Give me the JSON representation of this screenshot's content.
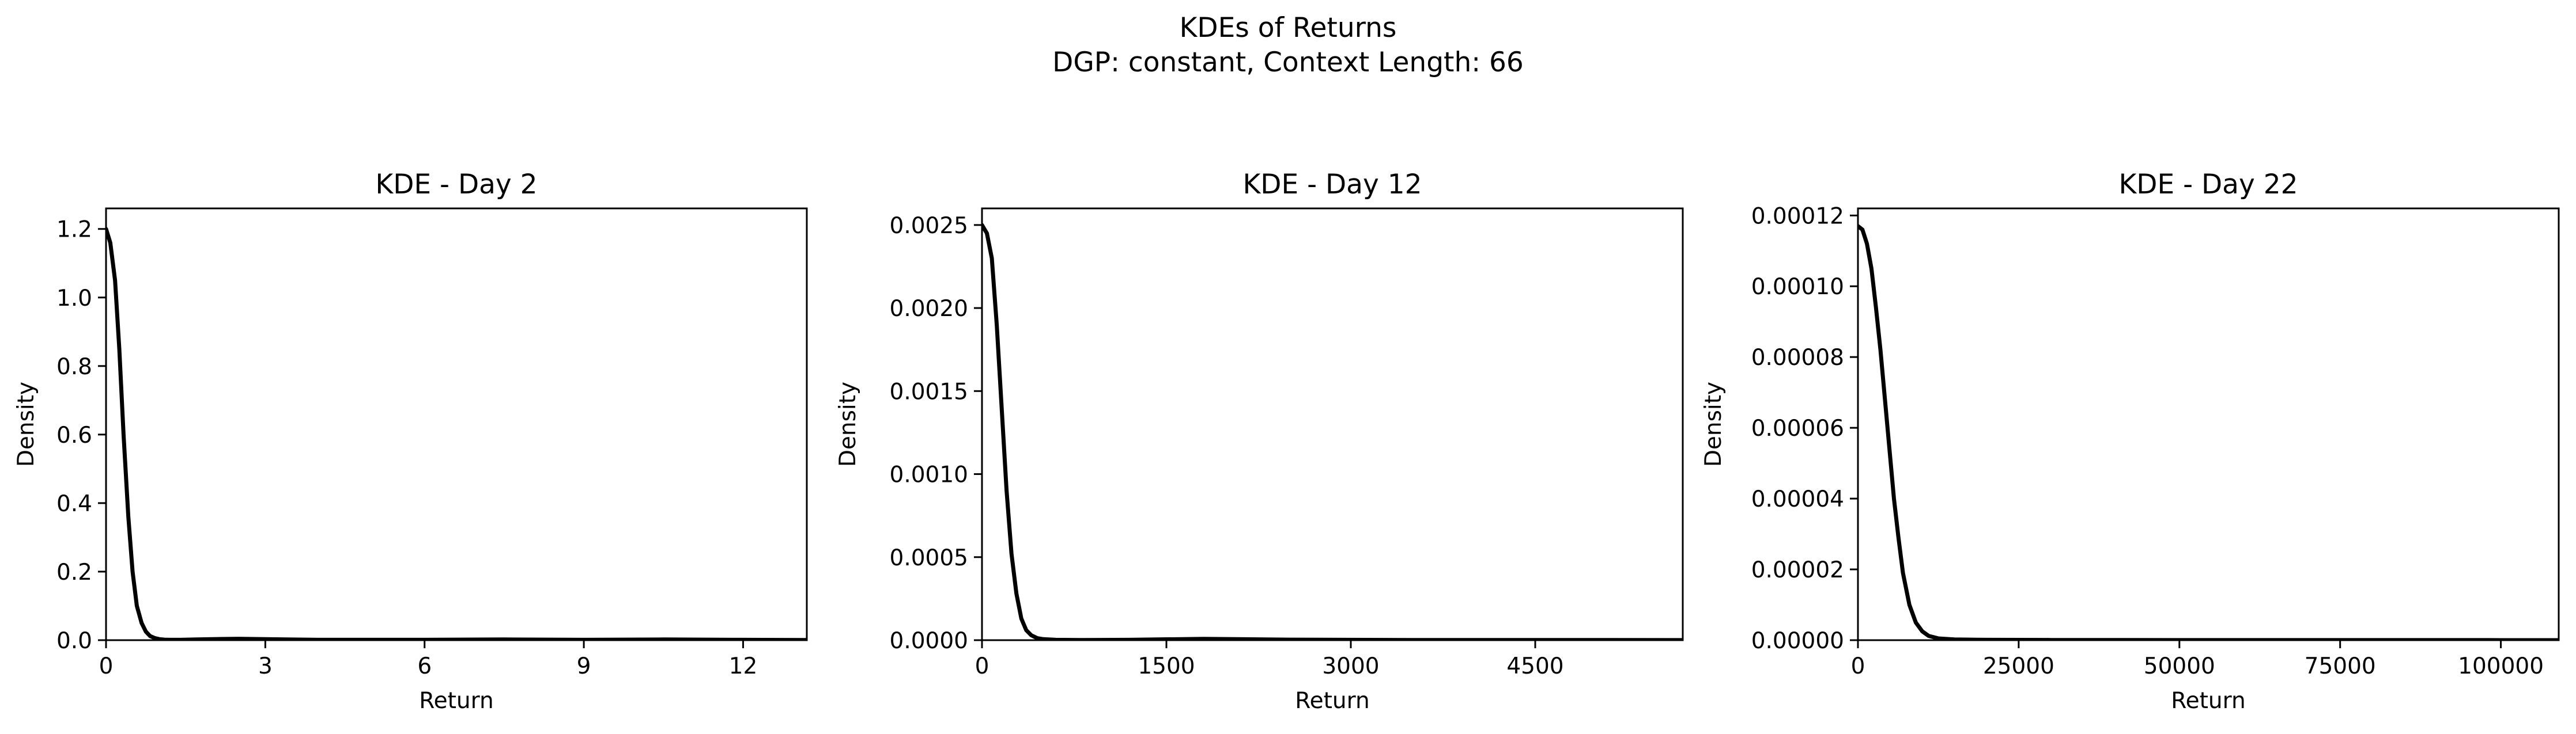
{
  "figure": {
    "title_line1": "KDEs of Returns",
    "title_line2": "DGP: constant, Context Length: 66"
  },
  "chart_data": [
    {
      "type": "line",
      "title": "KDE - Day 2",
      "xlabel": "Return",
      "ylabel": "Density",
      "xlim": [
        0,
        13.2
      ],
      "ylim": [
        0,
        1.26
      ],
      "xticks": [
        0,
        3,
        6,
        9,
        12
      ],
      "xtick_labels": [
        "0",
        "3",
        "6",
        "9",
        "12"
      ],
      "yticks": [
        0,
        0.2,
        0.4,
        0.6,
        0.8,
        1.0,
        1.2
      ],
      "ytick_labels": [
        "0.0",
        "0.2",
        "0.4",
        "0.6",
        "0.8",
        "1.0",
        "1.2"
      ],
      "series": [
        {
          "color": "#000000",
          "x": [
            0,
            0.08,
            0.17,
            0.25,
            0.33,
            0.42,
            0.5,
            0.58,
            0.67,
            0.75,
            0.83,
            0.92,
            1.0,
            1.1,
            1.2,
            1.4,
            1.7,
            2.0,
            2.5,
            3.0,
            4.0,
            6.0,
            7.5,
            9.0,
            10.5,
            12.0,
            13.2
          ],
          "y": [
            1.2,
            1.16,
            1.05,
            0.85,
            0.6,
            0.36,
            0.2,
            0.1,
            0.05,
            0.025,
            0.012,
            0.006,
            0.003,
            0.0015,
            0.001,
            0.001,
            0.002,
            0.003,
            0.004,
            0.003,
            0.001,
            0.001,
            0.002,
            0.001,
            0.002,
            0.001,
            0.0005
          ]
        }
      ]
    },
    {
      "type": "line",
      "title": "KDE - Day 12",
      "xlabel": "Return",
      "ylabel": "Density",
      "xlim": [
        0,
        5700
      ],
      "ylim": [
        0,
        0.0026
      ],
      "xticks": [
        0,
        1500,
        3000,
        4500
      ],
      "xtick_labels": [
        "0",
        "1500",
        "3000",
        "4500"
      ],
      "yticks": [
        0,
        0.0005,
        0.001,
        0.0015,
        0.002,
        0.0025
      ],
      "ytick_labels": [
        "0.0000",
        "0.0005",
        "0.0010",
        "0.0015",
        "0.0020",
        "0.0025"
      ],
      "series": [
        {
          "color": "#000000",
          "x": [
            0,
            40,
            80,
            120,
            160,
            200,
            240,
            280,
            320,
            360,
            400,
            450,
            500,
            600,
            800,
            1200,
            1800,
            2500,
            3500,
            4500,
            5700
          ],
          "y": [
            0.0025,
            0.00245,
            0.0023,
            0.0019,
            0.0014,
            0.0009,
            0.00052,
            0.00028,
            0.00013,
            6e-05,
            3e-05,
            1.2e-05,
            6e-06,
            2e-06,
            1e-06,
            2e-06,
            8e-06,
            3e-06,
            1e-06,
            1e-06,
            5e-07
          ]
        }
      ]
    },
    {
      "type": "line",
      "title": "KDE - Day 22",
      "xlabel": "Return",
      "ylabel": "Density",
      "xlim": [
        0,
        109000
      ],
      "ylim": [
        0,
        0.000122
      ],
      "xticks": [
        0,
        25000,
        50000,
        75000,
        100000
      ],
      "xtick_labels": [
        "0",
        "25000",
        "50000",
        "75000",
        "100000"
      ],
      "yticks": [
        0,
        2e-05,
        4e-05,
        6e-05,
        8e-05,
        0.0001,
        0.00012
      ],
      "ytick_labels": [
        "0.00000",
        "0.00002",
        "0.00004",
        "0.00006",
        "0.00008",
        "0.00010",
        "0.00012"
      ],
      "series": [
        {
          "color": "#000000",
          "x": [
            0,
            700,
            1400,
            2100,
            2800,
            3500,
            4200,
            4900,
            5600,
            6300,
            7000,
            8000,
            9000,
            10000,
            11000,
            12500,
            15000,
            20000,
            30000,
            50000,
            75000,
            100000,
            109000
          ],
          "y": [
            0.000117,
            0.000116,
            0.000112,
            0.000105,
            9.4e-05,
            8.2e-05,
            6.8e-05,
            5.4e-05,
            4e-05,
            2.9e-05,
            1.9e-05,
            1e-05,
            5e-06,
            2.5e-06,
            1.2e-06,
            5e-07,
            2e-07,
            1e-07,
            5e-08,
            3e-08,
            2e-08,
            1e-08,
            1e-08
          ]
        }
      ]
    }
  ]
}
